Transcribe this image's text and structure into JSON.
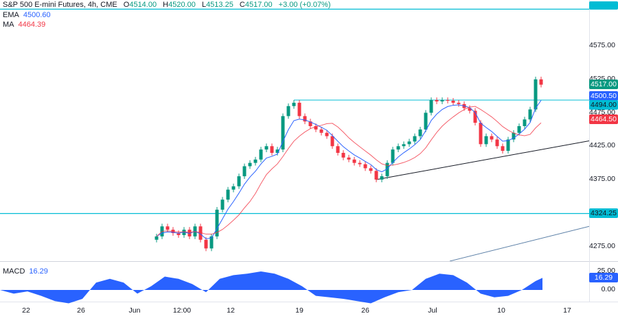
{
  "header": {
    "title": "S&P 500 E-mini Futures, 4h, CME",
    "open_label": "O",
    "open": "4514.00",
    "high_label": "H",
    "high": "4520.00",
    "low_label": "L",
    "low": "4513.25",
    "close_label": "C",
    "close": "4517.00",
    "change": "+3.00 (+0.07%)"
  },
  "indicators": {
    "ema_label": "EMA",
    "ema_value": "4500.60",
    "ma_label": "MA",
    "ma_value": "4464.39",
    "macd_label": "MACD",
    "macd_value": "16.29"
  },
  "colors": {
    "up": "#089981",
    "down": "#f23645",
    "ema": "#2962ff",
    "ma": "#f23645",
    "level": "#00bcd4",
    "macd": "#2962ff"
  },
  "chart_data": {
    "type": "candlestick",
    "y_ticks": [
      "4575.00",
      "4525.00",
      "4475.00",
      "4425.00",
      "4375.00",
      "4275.00"
    ],
    "ylim": [
      4250,
      4640
    ],
    "x_ticks": [
      "22",
      "26",
      "Jun",
      "12:00",
      "12",
      "19",
      "26",
      "Jul",
      "10",
      "17"
    ],
    "price_labels": [
      {
        "text": "4517.00",
        "kind": "last"
      },
      {
        "text": "4500.50",
        "kind": "ema"
      },
      {
        "text": "4494.00",
        "kind": "level"
      },
      {
        "text": "4464.50",
        "kind": "ma"
      },
      {
        "text": "4324.25",
        "kind": "level"
      }
    ],
    "levels": [
      4494,
      4324.25,
      4630
    ],
    "trendlines": [
      {
        "from": 4375,
        "to": 4433
      },
      {
        "from": 4253,
        "to": 4305
      }
    ],
    "closes": [
      4290,
      4305,
      4300,
      4295,
      4292,
      4300,
      4290,
      4305,
      4285,
      4272,
      4290,
      4330,
      4345,
      4360,
      4365,
      4380,
      4395,
      4400,
      4405,
      4420,
      4425,
      4415,
      4420,
      4470,
      4485,
      4490,
      4470,
      4462,
      4455,
      4450,
      4445,
      4440,
      4425,
      4415,
      4408,
      4405,
      4400,
      4398,
      4392,
      4388,
      4375,
      4380,
      4400,
      4420,
      4425,
      4428,
      4432,
      4440,
      4450,
      4475,
      4494,
      4492,
      4494,
      4493,
      4490,
      4488,
      4482,
      4478,
      4460,
      4428,
      4440,
      4435,
      4425,
      4418,
      4435,
      4445,
      4455,
      4465,
      4480,
      4525,
      4517
    ],
    "macd": {
      "y_ticks": [
        "25.00",
        "0.00"
      ],
      "values": [
        0,
        -5,
        -2,
        -8,
        -15,
        -18,
        -12,
        10,
        15,
        10,
        -5,
        5,
        18,
        15,
        8,
        -3,
        15,
        20,
        22,
        25,
        22,
        15,
        5,
        -8,
        -10,
        -12,
        -15,
        -18,
        -10,
        -3,
        0,
        15,
        22,
        20,
        10,
        -5,
        -10,
        -8,
        0,
        12,
        16.29
      ]
    }
  }
}
